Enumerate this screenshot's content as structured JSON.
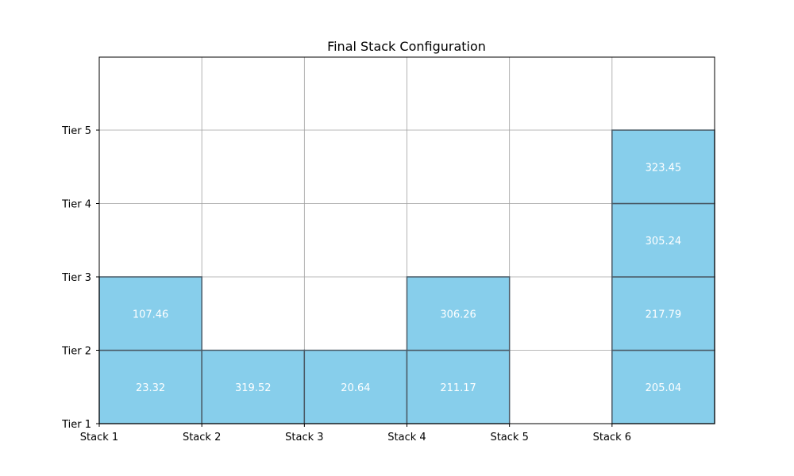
{
  "chart_data": {
    "type": "bar",
    "title": "Final Stack Configuration",
    "xlabel": "",
    "ylabel": "",
    "x_tick_labels": [
      "Stack 1",
      "Stack 2",
      "Stack 3",
      "Stack 4",
      "Stack 5",
      "Stack 6"
    ],
    "y_tick_labels": [
      "Tier 1",
      "Tier 2",
      "Tier 3",
      "Tier 4",
      "Tier 5"
    ],
    "xlim": [
      0,
      6
    ],
    "ylim": [
      0,
      5
    ],
    "grid": true,
    "box_color": "#87CEEB",
    "box_edge_color": "#4a5a66",
    "grid_color": "#a0a0a0",
    "stacks": [
      {
        "stack": 1,
        "containers": [
          23.32,
          107.46
        ]
      },
      {
        "stack": 2,
        "containers": [
          319.52
        ]
      },
      {
        "stack": 3,
        "containers": [
          20.64
        ]
      },
      {
        "stack": 4,
        "containers": [
          211.17,
          306.26
        ]
      },
      {
        "stack": 5,
        "containers": []
      },
      {
        "stack": 6,
        "containers": [
          205.04,
          217.79,
          305.24,
          323.45
        ]
      }
    ]
  }
}
